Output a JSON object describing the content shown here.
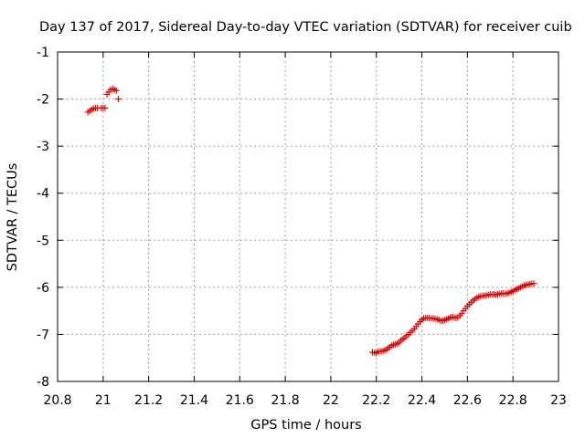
{
  "chart_data": {
    "type": "scatter",
    "title": "Day 137 of 2017, Sidereal Day-to-day VTEC variation (SDTVAR) for receiver cuib",
    "xlabel": "GPS time / hours",
    "ylabel": "SDTVAR / TECUs",
    "xlim": [
      20.8,
      23
    ],
    "ylim": [
      -8,
      -1
    ],
    "xticks": [
      "20.8",
      "21",
      "21.2",
      "21.4",
      "21.6",
      "21.8",
      "22",
      "22.2",
      "22.4",
      "22.6",
      "22.8",
      "23"
    ],
    "yticks": [
      "-1",
      "-2",
      "-3",
      "-4",
      "-5",
      "-6",
      "-7",
      "-8"
    ],
    "grid": true,
    "marker": "+",
    "color": "#dd0000",
    "series": [
      {
        "x": [
          20.933,
          20.942,
          20.95,
          20.958,
          20.967,
          20.975,
          20.992,
          21.0,
          21.008,
          21.017,
          21.025,
          21.033,
          21.042,
          21.05,
          21.058,
          21.067
        ],
        "y": [
          -2.28,
          -2.25,
          -2.22,
          -2.2,
          -2.19,
          -2.19,
          -2.19,
          -2.19,
          -2.19,
          -1.9,
          -1.85,
          -1.8,
          -1.78,
          -1.8,
          -1.82,
          -2.0
        ]
      },
      {
        "x": [
          22.183,
          22.192,
          22.2,
          22.208,
          22.217,
          22.225,
          22.233,
          22.242,
          22.25,
          22.258,
          22.267,
          22.275,
          22.283,
          22.292,
          22.3,
          22.308,
          22.317,
          22.325,
          22.333,
          22.342,
          22.35,
          22.358,
          22.367,
          22.375,
          22.383,
          22.392,
          22.4,
          22.408,
          22.417,
          22.425,
          22.433,
          22.442,
          22.45,
          22.458,
          22.467,
          22.475,
          22.483,
          22.492,
          22.5,
          22.508,
          22.517,
          22.525,
          22.533,
          22.542,
          22.55,
          22.558,
          22.567,
          22.575,
          22.583,
          22.592,
          22.6,
          22.608,
          22.617,
          22.625,
          22.633,
          22.642,
          22.65,
          22.658,
          22.667,
          22.675,
          22.683,
          22.692,
          22.7,
          22.708,
          22.717,
          22.725,
          22.733,
          22.742,
          22.75,
          22.758,
          22.767,
          22.775,
          22.783,
          22.792,
          22.8,
          22.808,
          22.817,
          22.825,
          22.833,
          22.842,
          22.85,
          22.858,
          22.867,
          22.875,
          22.883,
          22.892
        ],
        "y": [
          -7.38,
          -7.39,
          -7.4,
          -7.37,
          -7.36,
          -7.36,
          -7.35,
          -7.33,
          -7.3,
          -7.27,
          -7.24,
          -7.22,
          -7.21,
          -7.2,
          -7.17,
          -7.13,
          -7.1,
          -7.07,
          -7.03,
          -7.0,
          -6.96,
          -6.92,
          -6.88,
          -6.83,
          -6.78,
          -6.73,
          -6.69,
          -6.66,
          -6.65,
          -6.65,
          -6.65,
          -6.66,
          -6.66,
          -6.67,
          -6.68,
          -6.69,
          -6.71,
          -6.71,
          -6.7,
          -6.68,
          -6.66,
          -6.64,
          -6.63,
          -6.64,
          -6.65,
          -6.64,
          -6.6,
          -6.56,
          -6.5,
          -6.45,
          -6.4,
          -6.36,
          -6.32,
          -6.28,
          -6.25,
          -6.22,
          -6.2,
          -6.19,
          -6.18,
          -6.18,
          -6.17,
          -6.16,
          -6.15,
          -6.15,
          -6.15,
          -6.16,
          -6.15,
          -6.14,
          -6.13,
          -6.13,
          -6.14,
          -6.13,
          -6.12,
          -6.1,
          -6.08,
          -6.06,
          -6.04,
          -6.02,
          -6.0,
          -5.98,
          -5.96,
          -5.95,
          -5.94,
          -5.93,
          -5.92,
          -5.92
        ]
      }
    ]
  }
}
